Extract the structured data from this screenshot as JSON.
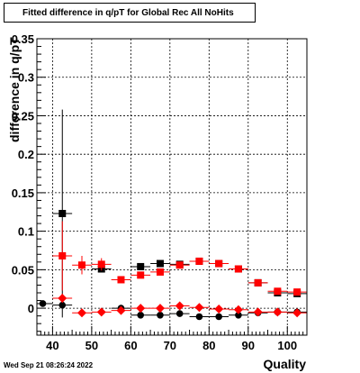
{
  "title": "Fitted difference in q/pT for Global Rec All NoHits",
  "footer": "Wed Sep 21 08:26:24 2022",
  "chart_data": {
    "type": "scatter",
    "title": "Fitted difference in q/pT for Global Rec All NoHits",
    "xlabel": "Quality",
    "ylabel": "difference in q/pT",
    "xlim": [
      36,
      105
    ],
    "ylim": [
      -0.035,
      0.35
    ],
    "grid": true,
    "x_ticks": [
      40,
      50,
      60,
      70,
      80,
      90,
      100
    ],
    "x_tick_labels": [
      "40",
      "50",
      "60",
      "70",
      "80",
      "90",
      "100"
    ],
    "y_ticks": [
      0,
      0.05,
      0.1,
      0.15,
      0.2,
      0.25,
      0.3,
      0.35
    ],
    "y_tick_labels": [
      "0",
      "0.05",
      "0.1",
      "0.15",
      "0.2",
      "0.25",
      "0.3",
      "0.35"
    ],
    "series": [
      {
        "marker": "square",
        "color": "#000000",
        "x": [
          42.5,
          52.5,
          62.5,
          67.5,
          72.5,
          77.5,
          82.5,
          87.5,
          92.5,
          97.5,
          102.5
        ],
        "y": [
          0.123,
          0.051,
          0.054,
          0.058,
          0.057,
          0.061,
          0.058,
          0.051,
          0.033,
          0.02,
          0.019
        ],
        "err": [
          0.135,
          0.004,
          0.003,
          0.003,
          0.002,
          0.002,
          0.002,
          0.002,
          0.002,
          0.002,
          0.002
        ]
      },
      {
        "marker": "square",
        "color": "#ff0000",
        "x": [
          42.5,
          47.5,
          52.5,
          57.5,
          62.5,
          67.5,
          72.5,
          77.5,
          82.5,
          87.5,
          92.5,
          97.5,
          102.5
        ],
        "y": [
          0.068,
          0.056,
          0.057,
          0.037,
          0.043,
          0.047,
          0.056,
          0.061,
          0.058,
          0.051,
          0.033,
          0.022,
          0.021
        ],
        "err": [
          0.045,
          0.012,
          0.008,
          0.004,
          0.004,
          0.003,
          0.003,
          0.003,
          0.002,
          0.002,
          0.002,
          0.002,
          0.002
        ]
      },
      {
        "marker": "circle",
        "color": "#000000",
        "x": [
          37.5,
          42.5,
          57.5,
          62.5,
          67.5,
          72.5,
          77.5,
          82.5,
          87.5,
          92.5,
          97.5,
          102.5
        ],
        "y": [
          0.006,
          0.004,
          0.0,
          -0.009,
          -0.009,
          -0.007,
          -0.011,
          -0.011,
          -0.009,
          -0.006,
          -0.005,
          -0.005
        ],
        "err": [
          0.003,
          0.004,
          0.002,
          0.002,
          0.002,
          0.002,
          0.002,
          0.002,
          0.002,
          0.002,
          0.002,
          0.002
        ]
      },
      {
        "marker": "diamond",
        "color": "#ff0000",
        "x": [
          42.5,
          47.5,
          52.5,
          57.5,
          62.5,
          67.5,
          72.5,
          77.5,
          82.5,
          87.5,
          92.5,
          97.5,
          102.5
        ],
        "y": [
          0.013,
          -0.006,
          -0.005,
          -0.003,
          0.0,
          0.0,
          0.003,
          0.001,
          -0.001,
          -0.002,
          -0.005,
          -0.005,
          -0.006
        ],
        "err": [
          0.006,
          0.004,
          0.003,
          0.002,
          0.002,
          0.002,
          0.002,
          0.002,
          0.002,
          0.002,
          0.002,
          0.002,
          0.002
        ]
      }
    ]
  }
}
